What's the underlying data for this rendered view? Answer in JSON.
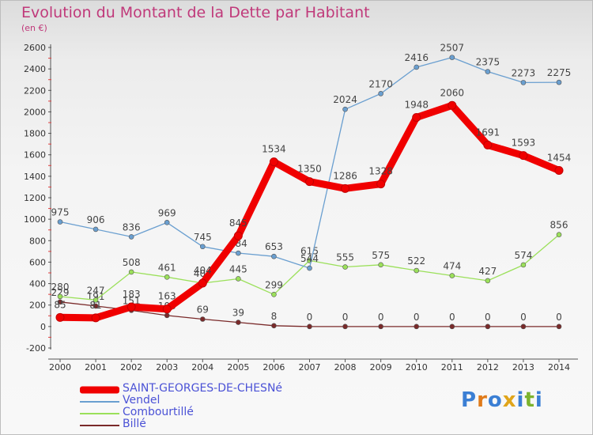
{
  "title": "Evolution du Montant de la Dette par Habitant",
  "subtitle": "(en €)",
  "logo": {
    "text": "Proxiti",
    "colors": [
      "#3b7fd4",
      "#e07b1a",
      "#3b7fd4",
      "#e0a51a",
      "#3b7fd4",
      "#7cb32e",
      "#3b7fd4"
    ]
  },
  "chart_data": {
    "type": "line",
    "title": "Evolution du Montant de la Dette par Habitant",
    "subtitle": "(en €)",
    "x": [
      2000,
      2001,
      2002,
      2003,
      2004,
      2005,
      2006,
      2007,
      2008,
      2009,
      2010,
      2011,
      2012,
      2013,
      2014
    ],
    "ylim": [
      -200,
      2600
    ],
    "yticks": [
      -200,
      0,
      200,
      400,
      600,
      800,
      1000,
      1200,
      1400,
      1600,
      1800,
      2000,
      2200,
      2400,
      2600
    ],
    "grid": false,
    "legend_position": "bottom-left",
    "series": [
      {
        "name": "SAINT-GEORGES-DE-CHESNé",
        "color": "#f00000",
        "values": [
          85,
          81,
          183,
          163,
          404,
          845,
          1534,
          1350,
          1286,
          1328,
          1948,
          2060,
          1691,
          1593,
          1454
        ]
      },
      {
        "name": "Vendel",
        "color": "#6a9fd0",
        "values": [
          975,
          906,
          836,
          969,
          745,
          684,
          653,
          544,
          2024,
          2170,
          2416,
          2507,
          2375,
          2273,
          2275
        ]
      },
      {
        "name": "Combourtillé",
        "color": "#9be05a",
        "values": [
          280,
          247,
          508,
          461,
          404,
          445,
          299,
          615,
          555,
          575,
          522,
          474,
          427,
          574,
          856
        ]
      },
      {
        "name": "Billé",
        "color": "#7a2a2a",
        "values": [
          229,
          191,
          151,
          103,
          69,
          39,
          8,
          0,
          0,
          0,
          0,
          0,
          0,
          0,
          0
        ]
      }
    ]
  }
}
